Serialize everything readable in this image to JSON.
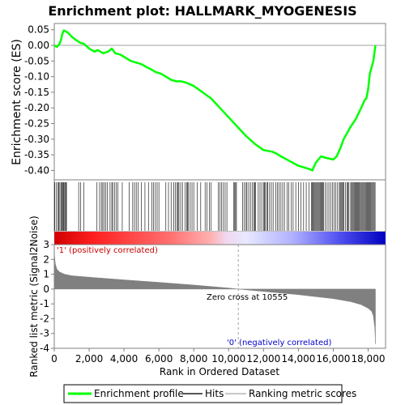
{
  "chart_data": [
    {
      "type": "line",
      "title": "Enrichment plot: HALLMARK_MYOGENESIS",
      "ylabel": "Enrichment score (ES)",
      "ylim": [
        -0.43,
        0.07
      ],
      "y_ticks": [
        "0.05",
        "0.00",
        "-0.05",
        "-0.10",
        "-0.15",
        "-0.20",
        "-0.25",
        "-0.30",
        "-0.35",
        "-0.40"
      ],
      "y_tick_values": [
        0.05,
        0.0,
        -0.05,
        -0.1,
        -0.15,
        -0.2,
        -0.25,
        -0.3,
        -0.35,
        -0.4
      ],
      "series": [
        {
          "name": "Enrichment profile",
          "color": "#00ff00",
          "x": [
            0,
            150,
            300,
            400,
            450,
            550,
            650,
            800,
            1000,
            1300,
            1500,
            1700,
            2000,
            2300,
            2500,
            2800,
            3100,
            3300,
            3500,
            3800,
            4100,
            4400,
            4700,
            5000,
            5300,
            5500,
            5800,
            6100,
            6400,
            6700,
            7000,
            7300,
            7600,
            8000,
            8500,
            9000,
            9500,
            10000,
            10500,
            11000,
            11500,
            12000,
            12500,
            12700,
            13000,
            13500,
            14000,
            14300,
            14600,
            14800,
            15000,
            15300,
            15600,
            16000,
            16200,
            16400,
            16600,
            16800,
            17000,
            17300,
            17600,
            17800,
            17900,
            18000,
            18100,
            18200,
            18300,
            18420
          ],
          "y": [
            0.0,
            -0.005,
            0.005,
            0.02,
            0.035,
            0.048,
            0.045,
            0.04,
            0.028,
            0.015,
            0.008,
            0.005,
            -0.01,
            -0.02,
            -0.015,
            -0.025,
            -0.02,
            -0.01,
            -0.025,
            -0.03,
            -0.04,
            -0.05,
            -0.055,
            -0.06,
            -0.07,
            -0.075,
            -0.085,
            -0.09,
            -0.1,
            -0.11,
            -0.115,
            -0.115,
            -0.12,
            -0.13,
            -0.15,
            -0.17,
            -0.2,
            -0.23,
            -0.26,
            -0.29,
            -0.315,
            -0.335,
            -0.34,
            -0.345,
            -0.355,
            -0.37,
            -0.385,
            -0.39,
            -0.395,
            -0.4,
            -0.375,
            -0.355,
            -0.36,
            -0.365,
            -0.355,
            -0.33,
            -0.3,
            -0.28,
            -0.26,
            -0.235,
            -0.2,
            -0.175,
            -0.17,
            -0.14,
            -0.09,
            -0.07,
            -0.05,
            0.0
          ]
        }
      ],
      "grid": false
    },
    {
      "type": "scatter",
      "name": "Hits",
      "hit_ranks": [
        30,
        120,
        200,
        260,
        320,
        380,
        430,
        470,
        520,
        560,
        610,
        660,
        700,
        1400,
        1520,
        1700,
        2450,
        2600,
        2700,
        2780,
        2850,
        2950,
        3050,
        3200,
        3300,
        3350,
        3450,
        3550,
        3650,
        3900,
        4300,
        4500,
        4600,
        4700,
        4800,
        5000,
        5200,
        5400,
        5600,
        5700,
        5800,
        5900,
        6000,
        6400,
        6550,
        6700,
        6850,
        6950,
        7050,
        7100,
        7150,
        7250,
        7350,
        7500,
        7600,
        7650,
        7700,
        7800,
        7900,
        8000,
        8200,
        8400,
        8650,
        8750,
        8900,
        9000,
        9400,
        9500,
        9600,
        9700,
        9800,
        9900,
        10300,
        10350,
        10400,
        10450,
        10800,
        10900,
        11000,
        11050,
        11150,
        11250,
        11350,
        11450,
        11500,
        11550,
        11700,
        11800,
        11900,
        12000,
        12050,
        12100,
        12200,
        12250,
        12350,
        12450,
        12550,
        12700,
        12800,
        12900,
        13000,
        13100,
        13200,
        13350,
        13450,
        13600,
        13700,
        13850,
        14000,
        14150,
        14300,
        14450,
        14600,
        14750,
        14800,
        14850,
        14900,
        14950,
        15000,
        15050,
        15100,
        15150,
        15200,
        15250,
        15300,
        15350,
        15400,
        15450,
        15550,
        15650,
        15750,
        15850,
        15950,
        16050,
        16150,
        16250,
        16350,
        16400,
        16450,
        16500,
        16550,
        16600,
        16700,
        16800,
        16850,
        16900,
        17000,
        17050,
        17100,
        17150,
        17200,
        17250,
        17300,
        17350,
        17400,
        17450,
        17500,
        17550,
        17600,
        17650,
        17700,
        17750,
        17800,
        17850,
        17900,
        17950,
        18000,
        18050,
        18100,
        18150,
        18200,
        18250,
        18300,
        18350,
        18400
      ]
    },
    {
      "type": "area",
      "name": "Ranking metric scores",
      "ylabel": "Ranked list metric (Signal2Noise)",
      "xlabel": "Rank in Ordered Dataset",
      "xlim": [
        0,
        19000
      ],
      "ylim": [
        -4,
        3
      ],
      "x_ticks": [
        "0",
        "2,000",
        "4,000",
        "6,000",
        "8,000",
        "10,000",
        "12,000",
        "14,000",
        "16,000",
        "18,000"
      ],
      "x_tick_values": [
        0,
        2000,
        4000,
        6000,
        8000,
        10000,
        12000,
        14000,
        16000,
        18000
      ],
      "y_ticks": [
        "3",
        "2",
        "1",
        "0",
        "-1",
        "-2",
        "-3",
        "-4"
      ],
      "y_tick_values": [
        3,
        2,
        1,
        0,
        -1,
        -2,
        -3,
        -4
      ],
      "series": [
        {
          "name": "Ranking metric scores",
          "color": "#808080",
          "x": [
            0,
            20,
            60,
            150,
            300,
            600,
            1000,
            2000,
            4000,
            6000,
            8000,
            10000,
            10555,
            12000,
            14000,
            16000,
            17000,
            17600,
            18000,
            18200,
            18300,
            18380,
            18420
          ],
          "y": [
            3.0,
            2.2,
            1.7,
            1.35,
            1.15,
            1.0,
            0.9,
            0.8,
            0.62,
            0.45,
            0.27,
            0.07,
            0.0,
            -0.16,
            -0.38,
            -0.65,
            -0.85,
            -1.05,
            -1.3,
            -1.5,
            -1.8,
            -2.6,
            -3.7
          ]
        }
      ],
      "zero_cross": 10555,
      "annotations": {
        "zero_cross_text": "Zero cross at 10555",
        "positive_label": "'1' (positively correlated)",
        "negative_label": "'0' (negatively correlated)"
      },
      "colors": {
        "positive": "#ff0000",
        "negative": "#0000ff",
        "negative_label": "#0000cc",
        "positive_label": "#cc0000"
      }
    }
  ],
  "legend": {
    "items": [
      {
        "label": "Enrichment profile",
        "color": "#00ff00"
      },
      {
        "label": "Hits",
        "color": "#555555"
      },
      {
        "label": "Ranking metric scores",
        "color": "#c8c8c8"
      }
    ]
  }
}
